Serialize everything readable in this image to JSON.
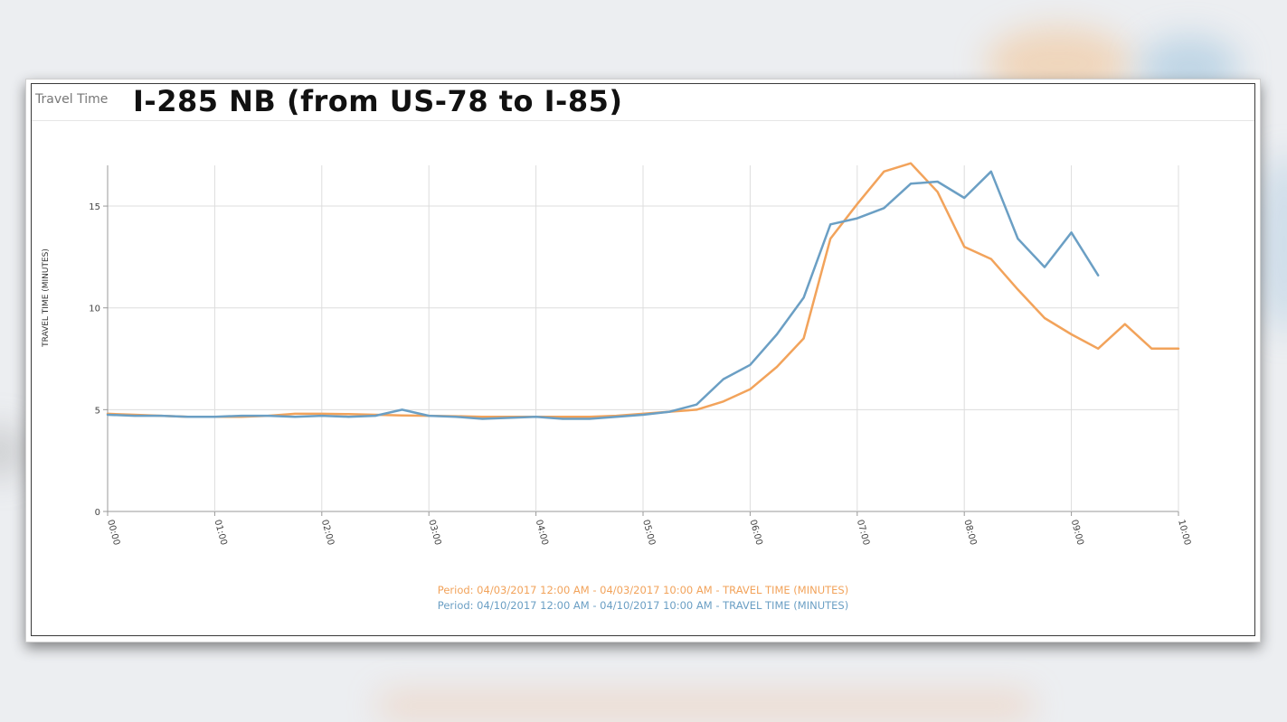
{
  "panel_label": "Travel Time",
  "route_title": "I-285 NB (from US-78 to I-85)",
  "colors": {
    "series_1": "#f2a35b",
    "series_2": "#6b9fc4",
    "grid": "#dddddd",
    "axis": "#999999"
  },
  "chart_data": {
    "type": "line",
    "title": "I-285 NB (from US-78 to I-85)",
    "xlabel": "",
    "ylabel": "TRAVEL TIME (MINUTES)",
    "x_unit": "hours since 00:00",
    "xlim": [
      0,
      10
    ],
    "ylim": [
      0,
      17
    ],
    "yticks": [
      0,
      5,
      10,
      15
    ],
    "xticks": [
      "00:00",
      "01:00",
      "02:00",
      "03:00",
      "04:00",
      "05:00",
      "06:00",
      "07:00",
      "08:00",
      "09:00",
      "10:00"
    ],
    "grid": true,
    "legend_position": "bottom-center",
    "series": [
      {
        "name": "Period: 04/03/2017 12:00 AM - 04/03/2017 10:00 AM - TRAVEL TIME (MINUTES)",
        "color": "#f2a35b",
        "x": [
          0,
          0.25,
          0.5,
          0.75,
          1,
          1.25,
          1.5,
          1.75,
          2,
          2.25,
          2.5,
          2.75,
          3,
          3.25,
          3.5,
          3.75,
          4,
          4.25,
          4.5,
          4.75,
          5,
          5.25,
          5.5,
          5.75,
          6,
          6.25,
          6.5,
          6.75,
          7,
          7.25,
          7.5,
          7.75,
          8,
          8.25,
          8.5,
          8.75,
          9,
          9.25,
          9.5,
          9.75,
          10
        ],
        "y": [
          4.8,
          4.75,
          4.7,
          4.65,
          4.65,
          4.65,
          4.7,
          4.8,
          4.8,
          4.78,
          4.75,
          4.72,
          4.7,
          4.68,
          4.65,
          4.65,
          4.65,
          4.65,
          4.65,
          4.7,
          4.8,
          4.9,
          5.0,
          5.4,
          6.0,
          7.1,
          8.5,
          13.4,
          15.1,
          16.7,
          17.1,
          15.7,
          13.0,
          12.4,
          10.9,
          9.5,
          8.7,
          8.0,
          9.2,
          8.0,
          8.0
        ]
      },
      {
        "name": "Period: 04/10/2017 12:00 AM - 04/10/2017 10:00 AM - TRAVEL TIME (MINUTES)",
        "color": "#6b9fc4",
        "x": [
          0,
          0.25,
          0.5,
          0.75,
          1,
          1.25,
          1.5,
          1.75,
          2,
          2.25,
          2.5,
          2.75,
          3,
          3.25,
          3.5,
          3.75,
          4,
          4.25,
          4.5,
          4.75,
          5,
          5.25,
          5.5,
          5.75,
          6,
          6.25,
          6.5,
          6.75,
          7,
          7.25,
          7.5,
          7.75,
          8,
          8.25,
          8.5,
          8.75,
          9,
          9.25
        ],
        "y": [
          4.75,
          4.7,
          4.7,
          4.65,
          4.65,
          4.7,
          4.7,
          4.65,
          4.7,
          4.65,
          4.7,
          5.0,
          4.7,
          4.65,
          4.55,
          4.6,
          4.65,
          4.55,
          4.55,
          4.65,
          4.75,
          4.9,
          5.25,
          6.5,
          7.2,
          8.7,
          10.5,
          14.1,
          14.4,
          14.9,
          16.1,
          16.2,
          15.4,
          16.7,
          13.4,
          12.0,
          13.7,
          11.6
        ]
      }
    ]
  }
}
